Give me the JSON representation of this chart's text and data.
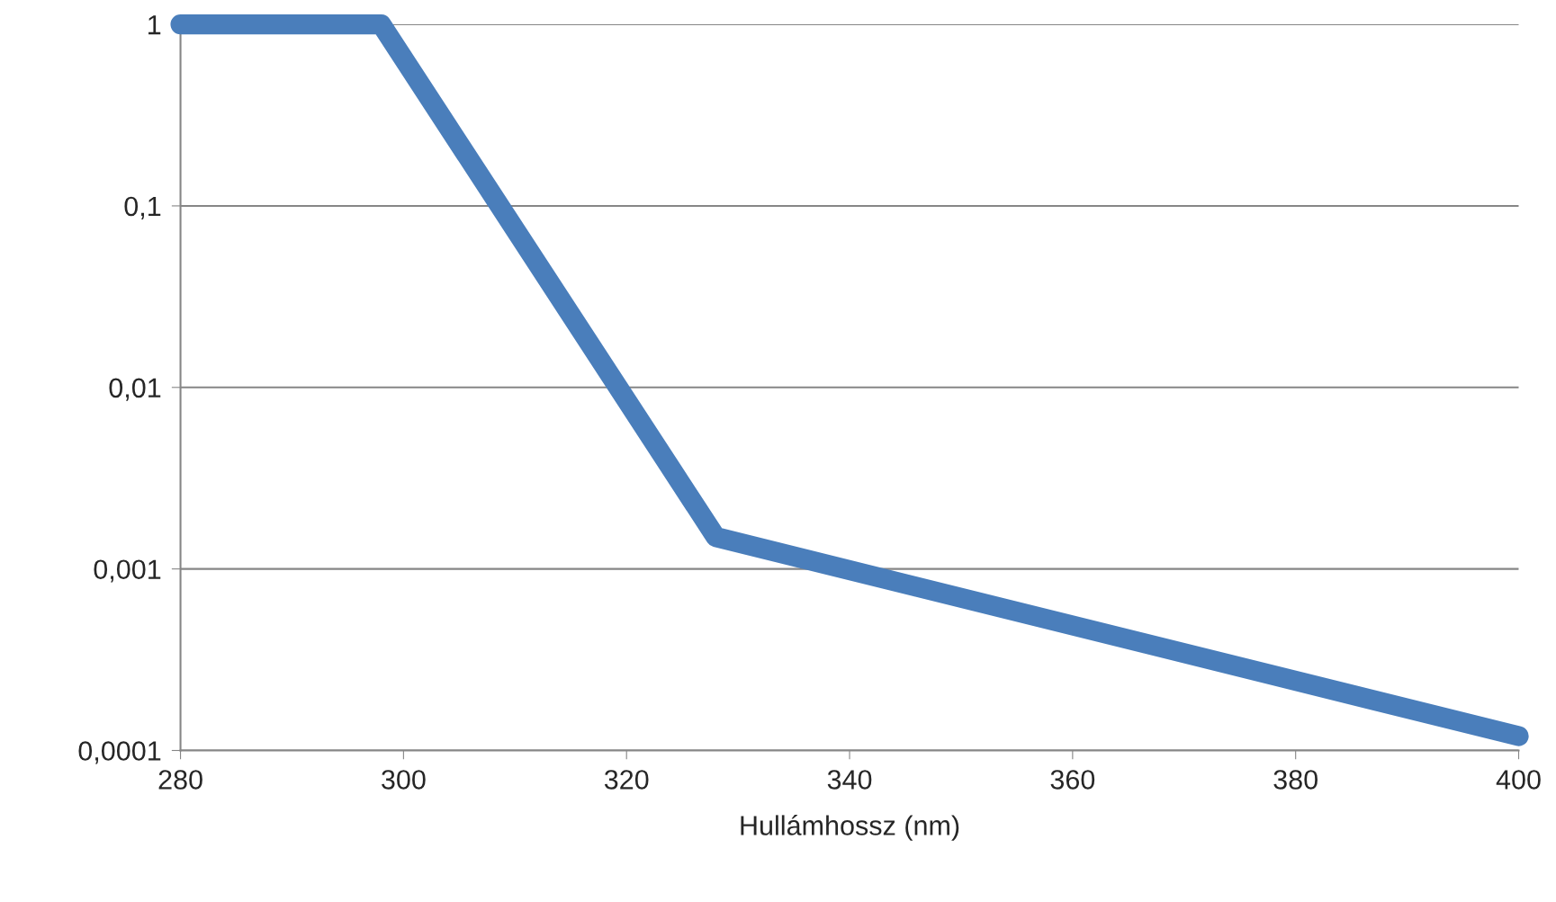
{
  "chart_data": {
    "type": "line",
    "xlabel": "Hullámhossz (nm)",
    "x": [
      280,
      298,
      328,
      400
    ],
    "series": [
      {
        "color": "#4a7ebb",
        "values": [
          1,
          1,
          0.0015,
          0.00012
        ]
      }
    ],
    "log": "y",
    "xlim": [
      280,
      400
    ],
    "ylim": [
      0.0001,
      1
    ],
    "xticks": [
      280,
      300,
      320,
      340,
      360,
      380,
      400
    ],
    "yticks": [
      {
        "value": 0.0001,
        "label": "0,0001"
      },
      {
        "value": 0.001,
        "label": "0,001"
      },
      {
        "value": 0.01,
        "label": "0,01"
      },
      {
        "value": 0.1,
        "label": "0,1"
      },
      1
    ],
    "grid": "y",
    "marker": "none",
    "line_style": "solid"
  }
}
